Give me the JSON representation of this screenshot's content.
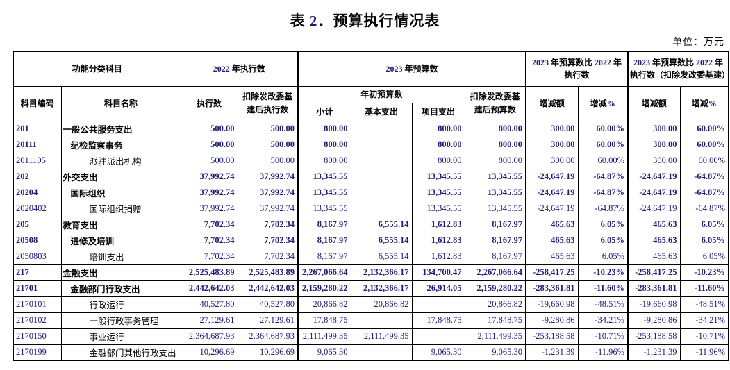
{
  "page": {
    "title": "表 2．预算执行情况表",
    "unit_label": "单位：万元"
  },
  "colors": {
    "text": "#000000",
    "numeral": "#1d1d78",
    "border": "#000000",
    "background": "#ffffff"
  },
  "table": {
    "header": {
      "group_function_subject": "功能分类科目",
      "group_2022_execution": "2022 年执行数",
      "group_2023_budget": "2023 年预算数",
      "group_2023_vs_2022": "2023 年预算数比 2022 年执行数",
      "group_2023_vs_2022_adjusted": "2023 年预算数比 2022 年执行数（扣除发改委基建）",
      "col_subject_code": "科目编码",
      "col_subject_name": "科目名称",
      "col_execution": "执行数",
      "col_execution_adjusted": "扣除发改委基建后执行数",
      "group_initial_budget": "年初预算数",
      "col_subtotal": "小计",
      "col_basic_expenditure": "基本支出",
      "col_project_expenditure": "项目支出",
      "col_budget_adjusted": "扣除发改委基建后预算数",
      "col_change_amount": "增减额",
      "col_change_percent": "增减%",
      "col_change_amount_2": "增减额",
      "col_change_percent_2": "增减%"
    },
    "rows": [
      {
        "code": "201",
        "name": "一般公共服务支出",
        "level": 1,
        "bold": true,
        "values": [
          "500.00",
          "500.00",
          "800.00",
          "",
          "800.00",
          "800.00",
          "300.00",
          "60.00%",
          "300.00",
          "60.00%"
        ]
      },
      {
        "code": "20111",
        "name": "纪检监察事务",
        "level": 2,
        "bold": true,
        "values": [
          "500.00",
          "500.00",
          "800.00",
          "",
          "800.00",
          "800.00",
          "300.00",
          "60.00%",
          "300.00",
          "60.00%"
        ]
      },
      {
        "code": "2011105",
        "name": "派驻派出机构",
        "level": 3,
        "bold": false,
        "values": [
          "500.00",
          "500.00",
          "800.00",
          "",
          "800.00",
          "800.00",
          "300.00",
          "60.00%",
          "300.00",
          "60.00%"
        ]
      },
      {
        "code": "202",
        "name": "外交支出",
        "level": 1,
        "bold": true,
        "values": [
          "37,992.74",
          "37,992.74",
          "13,345.55",
          "",
          "13,345.55",
          "13,345.55",
          "-24,647.19",
          "-64.87%",
          "-24,647.19",
          "-64.87%"
        ]
      },
      {
        "code": "20204",
        "name": "国际组织",
        "level": 2,
        "bold": true,
        "values": [
          "37,992.74",
          "37,992.74",
          "13,345.55",
          "",
          "13,345.55",
          "13,345.55",
          "-24,647.19",
          "-64.87%",
          "-24,647.19",
          "-64.87%"
        ]
      },
      {
        "code": "2020402",
        "name": "国际组织捐赠",
        "level": 3,
        "bold": false,
        "values": [
          "37,992.74",
          "37,992.74",
          "13,345.55",
          "",
          "13,345.55",
          "13,345.55",
          "-24,647.19",
          "-64.87%",
          "-24,647.19",
          "-64.87%"
        ]
      },
      {
        "code": "205",
        "name": "教育支出",
        "level": 1,
        "bold": true,
        "values": [
          "7,702.34",
          "7,702.34",
          "8,167.97",
          "6,555.14",
          "1,612.83",
          "8,167.97",
          "465.63",
          "6.05%",
          "465.63",
          "6.05%"
        ]
      },
      {
        "code": "20508",
        "name": "进修及培训",
        "level": 2,
        "bold": true,
        "values": [
          "7,702.34",
          "7,702.34",
          "8,167.97",
          "6,555.14",
          "1,612.83",
          "8,167.97",
          "465.63",
          "6.05%",
          "465.63",
          "6.05%"
        ]
      },
      {
        "code": "2050803",
        "name": "培训支出",
        "level": 3,
        "bold": false,
        "values": [
          "7,702.34",
          "7,702.34",
          "8,167.97",
          "6,555.14",
          "1,612.83",
          "8,167.97",
          "465.63",
          "6.05%",
          "465.63",
          "6.05%"
        ]
      },
      {
        "code": "217",
        "name": "金融支出",
        "level": 1,
        "bold": true,
        "values": [
          "2,525,483.89",
          "2,525,483.89",
          "2,267,066.64",
          "2,132,366.17",
          "134,700.47",
          "2,267,066.64",
          "-258,417.25",
          "-10.23%",
          "-258,417.25",
          "-10.23%"
        ]
      },
      {
        "code": "21701",
        "name": "金融部门行政支出",
        "level": 2,
        "bold": true,
        "values": [
          "2,442,642.03",
          "2,442,642.03",
          "2,159,280.22",
          "2,132,366.17",
          "26,914.05",
          "2,159,280.22",
          "-283,361.81",
          "-11.60%",
          "-283,361.81",
          "-11.60%"
        ]
      },
      {
        "code": "2170101",
        "name": "行政运行",
        "level": 3,
        "bold": false,
        "values": [
          "40,527.80",
          "40,527.80",
          "20,866.82",
          "20,866.82",
          "",
          "20,866.82",
          "-19,660.98",
          "-48.51%",
          "-19,660.98",
          "-48.51%"
        ]
      },
      {
        "code": "2170102",
        "name": "一般行政事务管理",
        "level": 3,
        "bold": false,
        "values": [
          "27,129.61",
          "27,129.61",
          "17,848.75",
          "",
          "17,848.75",
          "17,848.75",
          "-9,280.86",
          "-34.21%",
          "-9,280.86",
          "-34.21%"
        ]
      },
      {
        "code": "2170150",
        "name": "事业运行",
        "level": 3,
        "bold": false,
        "values": [
          "2,364,687.93",
          "2,364,687.93",
          "2,111,499.35",
          "2,111,499.35",
          "",
          "2,111,499.35",
          "-253,188.58",
          "-10.71%",
          "-253,188.58",
          "-10.71%"
        ]
      },
      {
        "code": "2170199",
        "name": "金融部门其他行政支出",
        "level": 3,
        "bold": false,
        "values": [
          "10,296.69",
          "10,296.69",
          "9,065.30",
          "",
          "9,065.30",
          "9,065.30",
          "-1,231.39",
          "-11.96%",
          "-1,231.39",
          "-11.96%"
        ]
      }
    ]
  }
}
